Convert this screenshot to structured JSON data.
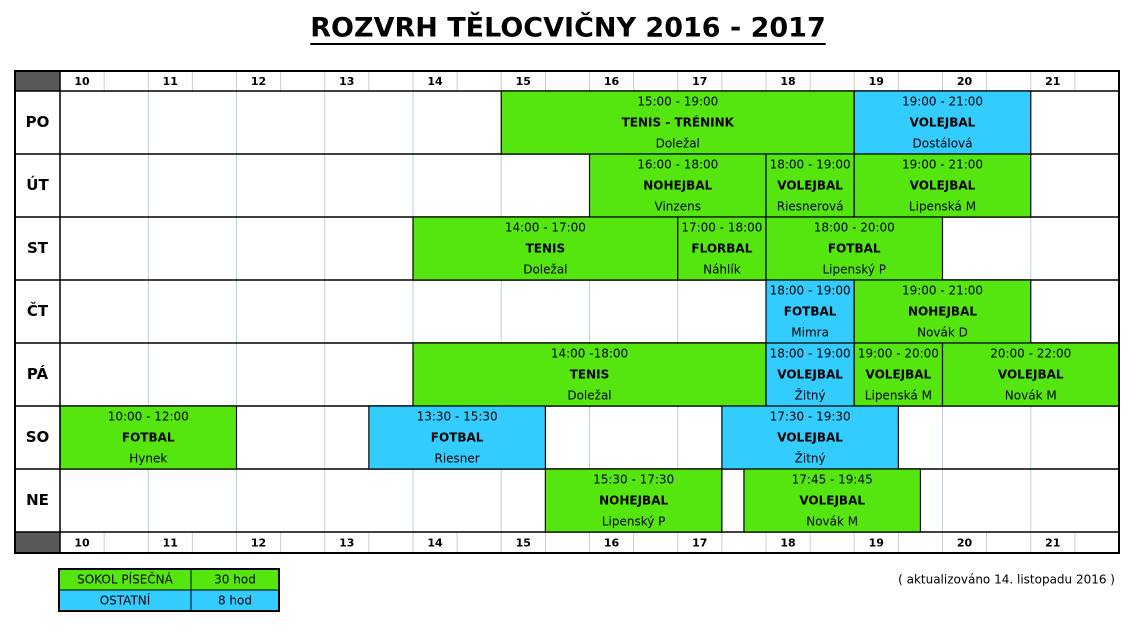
{
  "title": "ROZVRH TĚLOCVIČNY 2016 - 2017",
  "hours": [
    "10",
    "11",
    "12",
    "13",
    "14",
    "15",
    "16",
    "17",
    "18",
    "19",
    "20",
    "21"
  ],
  "days": [
    {
      "label": "PO",
      "events": [
        {
          "time": "15:00 - 19:00",
          "name": "TENIS - TRÉNINK",
          "person": "Doležal",
          "color": "#55e60f"
        },
        {
          "time": "19:00 - 21:00",
          "name": "VOLEJBAL",
          "person": "Dostálová",
          "color": "#33ccff"
        }
      ]
    },
    {
      "label": "ÚT",
      "events": [
        {
          "time": "16:00 - 18:00",
          "name": "NOHEJBAL",
          "person": "Vinzens",
          "color": "#55e60f"
        },
        {
          "time": "18:00 - 19:00",
          "name": "VOLEJBAL",
          "person": "Riesnerová",
          "color": "#55e60f"
        },
        {
          "time": "19:00 - 21:00",
          "name": "VOLEJBAL",
          "person": "Lipenská M",
          "color": "#55e60f"
        }
      ]
    },
    {
      "label": "ST",
      "events": [
        {
          "time": "14:00 - 17:00",
          "name": "TENIS",
          "person": "Doležal",
          "color": "#55e60f"
        },
        {
          "time": "17:00 - 18:00",
          "name": "FLORBAL",
          "person": "Náhlík",
          "color": "#55e60f"
        },
        {
          "time": "18:00 - 20:00",
          "name": "FOTBAL",
          "person": "Lipenský P",
          "color": "#55e60f"
        }
      ]
    },
    {
      "label": "ČT",
      "events": [
        {
          "time": "18:00 - 19:00",
          "name": "FOTBAL",
          "person": "Mimra",
          "color": "#33ccff"
        },
        {
          "time": "19:00 - 21:00",
          "name": "NOHEJBAL",
          "person": "Novák D",
          "color": "#55e60f"
        }
      ]
    },
    {
      "label": "PÁ",
      "events": [
        {
          "time": "14:00 -18:00",
          "name": "TENIS",
          "person": "Doležal",
          "color": "#55e60f"
        },
        {
          "time": "18:00 - 19:00",
          "name": "VOLEJBAL",
          "person": "Žitný",
          "color": "#33ccff"
        },
        {
          "time": "19:00 - 20:00",
          "name": "VOLEJBAL",
          "person": "Lipenská M",
          "color": "#55e60f"
        },
        {
          "time": "20:00 - 22:00",
          "name": "VOLEJBAL",
          "person": "Novák M",
          "color": "#55e60f"
        }
      ]
    },
    {
      "label": "SO",
      "events": [
        {
          "time": "10:00 - 12:00",
          "name": "FOTBAL",
          "person": "Hynek",
          "color": "#55e60f"
        },
        {
          "time": "13:30 - 15:30",
          "name": "FOTBAL",
          "person": "Riesner",
          "color": "#33ccff"
        },
        {
          "time": "17:30 - 19:30",
          "name": "VOLEJBAL",
          "person": "Žitný",
          "color": "#33ccff"
        }
      ]
    },
    {
      "label": "NE",
      "events": [
        {
          "time": "15:30 - 17:30",
          "name": "NOHEJBAL",
          "person": "Lipenský P",
          "color": "#55e60f"
        },
        {
          "time": "17:45 - 19:45",
          "name": "VOLEJBAL",
          "person": "Novák M",
          "color": "#55e60f"
        }
      ]
    }
  ],
  "legend": [
    {
      "label": "SOKOL PÍSEČNÁ",
      "hours": "30 hod",
      "color": "#55e60f"
    },
    {
      "label": "OSTATNÍ",
      "hours": "8 hod",
      "color": "#33ccff"
    }
  ],
  "note": "( aktualizováno 14. listopadu 2016 )"
}
